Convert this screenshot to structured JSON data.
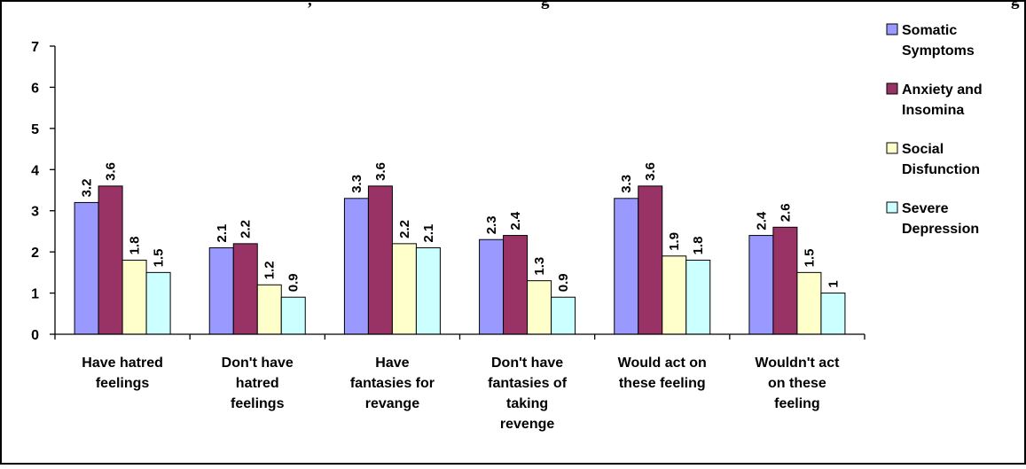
{
  "title_fragment_left": ",",
  "title_fragment_mid": "g",
  "title_fragment_right": "g",
  "chart_data": {
    "type": "bar",
    "title": "",
    "xlabel": "",
    "ylabel": "",
    "ylim": [
      0,
      7
    ],
    "yticks": [
      0,
      1,
      2,
      3,
      4,
      5,
      6,
      7
    ],
    "grid": false,
    "legend_position": "right",
    "categories": [
      [
        "Have hatred",
        "feelings"
      ],
      [
        "Don't have",
        "hatred",
        "feelings"
      ],
      [
        "Have",
        "fantasies for",
        "revange"
      ],
      [
        "Don't have",
        "fantasies of",
        "taking",
        "revenge"
      ],
      [
        "Would act on",
        "these feeling"
      ],
      [
        "Wouldn't act",
        "on these",
        "feeling"
      ]
    ],
    "series": [
      {
        "name": [
          "Somatic",
          "Symptoms"
        ],
        "color": "#9999ff",
        "values": [
          3.2,
          2.1,
          3.3,
          2.3,
          3.3,
          2.4
        ],
        "labels": [
          "3.2",
          "2.1",
          "3.3",
          "2.3",
          "3.3",
          "2.4"
        ]
      },
      {
        "name": [
          "Anxiety and",
          "Insomina"
        ],
        "color": "#993366",
        "values": [
          3.6,
          2.2,
          3.6,
          2.4,
          3.6,
          2.6
        ],
        "labels": [
          "3.6",
          "2.2",
          "3.6",
          "2.4",
          "3.6",
          "2.6"
        ]
      },
      {
        "name": [
          "Social",
          "Disfunction"
        ],
        "color": "#ffffcc",
        "values": [
          1.8,
          1.2,
          2.2,
          1.3,
          1.9,
          1.5
        ],
        "labels": [
          "1.8",
          "1.2",
          "2.2",
          "1.3",
          "1.9",
          "1.5"
        ]
      },
      {
        "name": [
          "Severe",
          "Depression"
        ],
        "color": "#ccffff",
        "values": [
          1.5,
          0.9,
          2.1,
          0.9,
          1.8,
          1.0
        ],
        "labels": [
          "1.5",
          "0.9",
          "2.1",
          "0.9",
          "1.8",
          "1"
        ]
      }
    ]
  }
}
